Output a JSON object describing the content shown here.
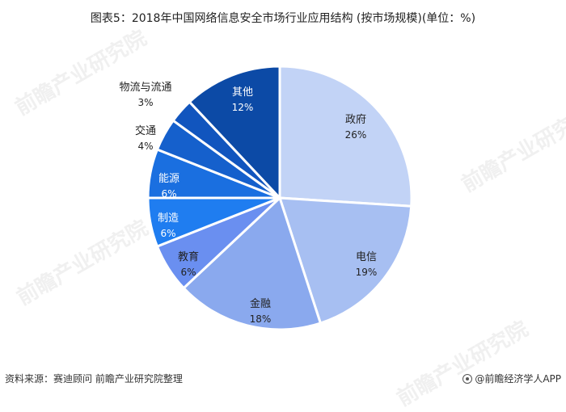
{
  "title": "图表5：2018年中国网络信息安全市场行业应用结构 (按市场规模)(单位：%)",
  "chart_data": {
    "type": "pie",
    "unit": "%",
    "slices": [
      {
        "label": "政府",
        "value": 26,
        "display": "26%",
        "color": "#c2d3f6",
        "label_color": "#222222"
      },
      {
        "label": "电信",
        "value": 19,
        "display": "19%",
        "color": "#a7bff2",
        "label_color": "#222222"
      },
      {
        "label": "金融",
        "value": 18,
        "display": "18%",
        "color": "#8aa9ee",
        "label_color": "#222222"
      },
      {
        "label": "教育",
        "value": 6,
        "display": "6%",
        "color": "#6a8ff0",
        "label_color": "#222222"
      },
      {
        "label": "制造",
        "value": 6,
        "display": "6%",
        "color": "#1f7df0",
        "label_color": "#ffffff"
      },
      {
        "label": "能源",
        "value": 6,
        "display": "6%",
        "color": "#1a6fe0",
        "label_color": "#ffffff"
      },
      {
        "label": "交通",
        "value": 4,
        "display": "4%",
        "color": "#1560cc",
        "label_color": "#222222"
      },
      {
        "label": "物流与流通",
        "value": 3,
        "display": "3%",
        "color": "#1155be",
        "label_color": "#222222"
      },
      {
        "label": "其他",
        "value": 12,
        "display": "12%",
        "color": "#0c4aa6",
        "label_color": "#ffffff"
      }
    ]
  },
  "footer": {
    "source": "资料来源：赛迪顾问 前瞻产业研究院整理",
    "brand": "@前瞻经济学人APP"
  },
  "watermark": "前瞻产业研究院"
}
